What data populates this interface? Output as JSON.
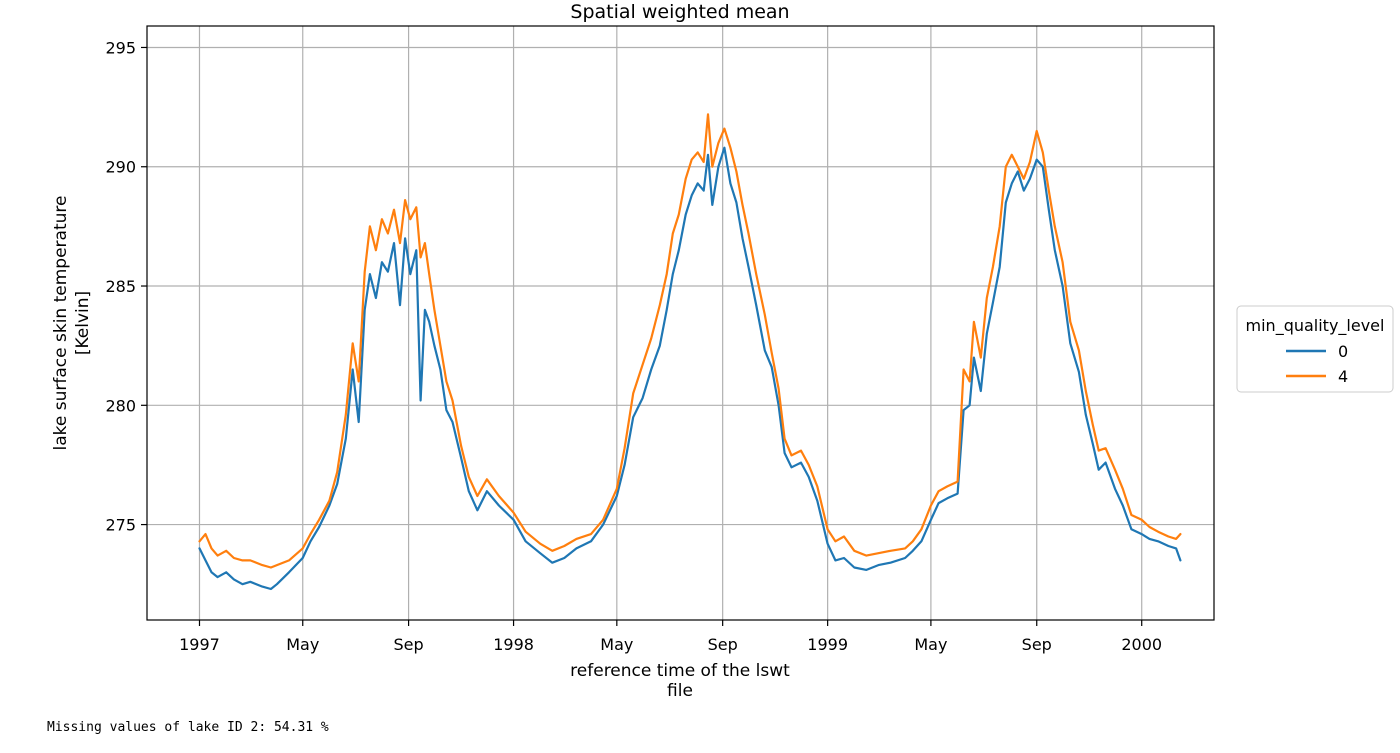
{
  "chart_data": {
    "type": "line",
    "title": "Spatial weighted mean",
    "xlabel_lines": [
      "reference time of the lswt",
      "file"
    ],
    "ylabel_lines": [
      "lake surface skin temperature",
      "[Kelvin]"
    ],
    "x_range": [
      "1996-11-01",
      "2000-03-25"
    ],
    "ylim": [
      271.0,
      295.9
    ],
    "y_ticks": [
      275,
      280,
      285,
      290,
      295
    ],
    "x_ticks": [
      {
        "date": "1997-01-01",
        "label": "1997"
      },
      {
        "date": "1997-05-01",
        "label": "May"
      },
      {
        "date": "1997-09-01",
        "label": "Sep"
      },
      {
        "date": "1998-01-01",
        "label": "1998"
      },
      {
        "date": "1998-05-01",
        "label": "May"
      },
      {
        "date": "1998-09-01",
        "label": "Sep"
      },
      {
        "date": "1999-01-01",
        "label": "1999"
      },
      {
        "date": "1999-05-01",
        "label": "May"
      },
      {
        "date": "1999-09-01",
        "label": "Sep"
      },
      {
        "date": "2000-01-01",
        "label": "2000"
      }
    ],
    "grid": true,
    "legend": {
      "title": "min_quality_level",
      "placement": "outside-right"
    },
    "series": [
      {
        "name": "0",
        "color": "#1f77b4",
        "points": [
          [
            "1997-01-01",
            274.0
          ],
          [
            "1997-01-08",
            273.5
          ],
          [
            "1997-01-15",
            273.0
          ],
          [
            "1997-01-22",
            272.8
          ],
          [
            "1997-02-01",
            273.0
          ],
          [
            "1997-02-10",
            272.7
          ],
          [
            "1997-02-20",
            272.5
          ],
          [
            "1997-03-01",
            272.6
          ],
          [
            "1997-03-15",
            272.4
          ],
          [
            "1997-03-25",
            272.3
          ],
          [
            "1997-04-01",
            272.5
          ],
          [
            "1997-04-15",
            273.0
          ],
          [
            "1997-05-01",
            273.6
          ],
          [
            "1997-05-10",
            274.3
          ],
          [
            "1997-05-20",
            274.9
          ],
          [
            "1997-06-01",
            275.8
          ],
          [
            "1997-06-10",
            276.7
          ],
          [
            "1997-06-20",
            278.6
          ],
          [
            "1997-06-28",
            281.5
          ],
          [
            "1997-07-05",
            279.3
          ],
          [
            "1997-07-12",
            284.0
          ],
          [
            "1997-07-18",
            285.5
          ],
          [
            "1997-07-25",
            284.5
          ],
          [
            "1997-08-01",
            286.0
          ],
          [
            "1997-08-08",
            285.6
          ],
          [
            "1997-08-15",
            286.8
          ],
          [
            "1997-08-22",
            284.2
          ],
          [
            "1997-08-28",
            287.0
          ],
          [
            "1997-09-03",
            285.5
          ],
          [
            "1997-09-10",
            286.5
          ],
          [
            "1997-09-15",
            280.2
          ],
          [
            "1997-09-20",
            284.0
          ],
          [
            "1997-09-25",
            283.5
          ],
          [
            "1997-10-01",
            282.5
          ],
          [
            "1997-10-08",
            281.5
          ],
          [
            "1997-10-15",
            279.8
          ],
          [
            "1997-10-22",
            279.3
          ],
          [
            "1997-11-01",
            277.8
          ],
          [
            "1997-11-10",
            276.4
          ],
          [
            "1997-11-20",
            275.6
          ],
          [
            "1997-12-01",
            276.4
          ],
          [
            "1997-12-15",
            275.8
          ],
          [
            "1998-01-01",
            275.2
          ],
          [
            "1998-01-15",
            274.3
          ],
          [
            "1998-02-01",
            273.8
          ],
          [
            "1998-02-15",
            273.4
          ],
          [
            "1998-03-01",
            273.6
          ],
          [
            "1998-03-15",
            274.0
          ],
          [
            "1998-04-01",
            274.3
          ],
          [
            "1998-04-15",
            275.0
          ],
          [
            "1998-05-01",
            276.2
          ],
          [
            "1998-05-10",
            277.5
          ],
          [
            "1998-05-20",
            279.5
          ],
          [
            "1998-05-31",
            280.3
          ],
          [
            "1998-06-10",
            281.5
          ],
          [
            "1998-06-20",
            282.5
          ],
          [
            "1998-06-28",
            284.0
          ],
          [
            "1998-07-05",
            285.5
          ],
          [
            "1998-07-12",
            286.5
          ],
          [
            "1998-07-20",
            288.0
          ],
          [
            "1998-07-27",
            288.8
          ],
          [
            "1998-08-03",
            289.3
          ],
          [
            "1998-08-10",
            289.0
          ],
          [
            "1998-08-15",
            290.5
          ],
          [
            "1998-08-20",
            288.4
          ],
          [
            "1998-08-27",
            290.0
          ],
          [
            "1998-09-03",
            290.8
          ],
          [
            "1998-09-10",
            289.3
          ],
          [
            "1998-09-17",
            288.5
          ],
          [
            "1998-09-24",
            287.0
          ],
          [
            "1998-10-01",
            285.8
          ],
          [
            "1998-10-10",
            284.2
          ],
          [
            "1998-10-20",
            282.3
          ],
          [
            "1998-10-28",
            281.6
          ],
          [
            "1998-11-05",
            280.0
          ],
          [
            "1998-11-12",
            278.0
          ],
          [
            "1998-11-20",
            277.4
          ],
          [
            "1998-12-01",
            277.6
          ],
          [
            "1998-12-10",
            277.0
          ],
          [
            "1998-12-20",
            276.0
          ],
          [
            "1999-01-01",
            274.2
          ],
          [
            "1999-01-10",
            273.5
          ],
          [
            "1999-01-20",
            273.6
          ],
          [
            "1999-02-01",
            273.2
          ],
          [
            "1999-02-15",
            273.1
          ],
          [
            "1999-03-01",
            273.3
          ],
          [
            "1999-03-15",
            273.4
          ],
          [
            "1999-04-01",
            273.6
          ],
          [
            "1999-04-10",
            273.9
          ],
          [
            "1999-04-20",
            274.3
          ],
          [
            "1999-05-01",
            275.2
          ],
          [
            "1999-05-10",
            275.9
          ],
          [
            "1999-05-20",
            276.1
          ],
          [
            "1999-06-01",
            276.3
          ],
          [
            "1999-06-08",
            279.8
          ],
          [
            "1999-06-15",
            280.0
          ],
          [
            "1999-06-20",
            282.0
          ],
          [
            "1999-06-28",
            280.6
          ],
          [
            "1999-07-05",
            283.0
          ],
          [
            "1999-07-12",
            284.3
          ],
          [
            "1999-07-20",
            285.8
          ],
          [
            "1999-07-27",
            288.5
          ],
          [
            "1999-08-03",
            289.3
          ],
          [
            "1999-08-10",
            289.8
          ],
          [
            "1999-08-17",
            289.0
          ],
          [
            "1999-08-24",
            289.5
          ],
          [
            "1999-09-01",
            290.3
          ],
          [
            "1999-09-08",
            290.0
          ],
          [
            "1999-09-15",
            288.2
          ],
          [
            "1999-09-22",
            286.5
          ],
          [
            "1999-10-01",
            285.0
          ],
          [
            "1999-10-10",
            282.6
          ],
          [
            "1999-10-20",
            281.4
          ],
          [
            "1999-10-28",
            279.6
          ],
          [
            "1999-11-05",
            278.4
          ],
          [
            "1999-11-12",
            277.3
          ],
          [
            "1999-11-20",
            277.6
          ],
          [
            "1999-12-01",
            276.5
          ],
          [
            "1999-12-10",
            275.8
          ],
          [
            "1999-12-20",
            274.8
          ],
          [
            "2000-01-01",
            274.6
          ],
          [
            "2000-01-10",
            274.4
          ],
          [
            "2000-01-20",
            274.3
          ],
          [
            "2000-02-01",
            274.1
          ],
          [
            "2000-02-10",
            274.0
          ],
          [
            "2000-02-15",
            273.5
          ]
        ]
      },
      {
        "name": "4",
        "color": "#ff7f0e",
        "points": [
          [
            "1997-01-01",
            274.3
          ],
          [
            "1997-01-08",
            274.6
          ],
          [
            "1997-01-15",
            274.0
          ],
          [
            "1997-01-22",
            273.7
          ],
          [
            "1997-02-01",
            273.9
          ],
          [
            "1997-02-10",
            273.6
          ],
          [
            "1997-02-20",
            273.5
          ],
          [
            "1997-03-01",
            273.5
          ],
          [
            "1997-03-15",
            273.3
          ],
          [
            "1997-03-25",
            273.2
          ],
          [
            "1997-04-01",
            273.3
          ],
          [
            "1997-04-15",
            273.5
          ],
          [
            "1997-05-01",
            274.0
          ],
          [
            "1997-05-10",
            274.6
          ],
          [
            "1997-05-20",
            275.2
          ],
          [
            "1997-06-01",
            276.0
          ],
          [
            "1997-06-10",
            277.2
          ],
          [
            "1997-06-20",
            279.6
          ],
          [
            "1997-06-28",
            282.6
          ],
          [
            "1997-07-05",
            281.0
          ],
          [
            "1997-07-12",
            285.6
          ],
          [
            "1997-07-18",
            287.5
          ],
          [
            "1997-07-25",
            286.5
          ],
          [
            "1997-08-01",
            287.8
          ],
          [
            "1997-08-08",
            287.2
          ],
          [
            "1997-08-15",
            288.2
          ],
          [
            "1997-08-22",
            286.8
          ],
          [
            "1997-08-28",
            288.6
          ],
          [
            "1997-09-03",
            287.8
          ],
          [
            "1997-09-10",
            288.3
          ],
          [
            "1997-09-15",
            286.2
          ],
          [
            "1997-09-20",
            286.8
          ],
          [
            "1997-09-25",
            285.5
          ],
          [
            "1997-10-01",
            284.0
          ],
          [
            "1997-10-08",
            282.5
          ],
          [
            "1997-10-15",
            281.0
          ],
          [
            "1997-10-22",
            280.2
          ],
          [
            "1997-11-01",
            278.3
          ],
          [
            "1997-11-10",
            277.0
          ],
          [
            "1997-11-20",
            276.2
          ],
          [
            "1997-12-01",
            276.9
          ],
          [
            "1997-12-15",
            276.2
          ],
          [
            "1998-01-01",
            275.5
          ],
          [
            "1998-01-15",
            274.7
          ],
          [
            "1998-02-01",
            274.2
          ],
          [
            "1998-02-15",
            273.9
          ],
          [
            "1998-03-01",
            274.1
          ],
          [
            "1998-03-15",
            274.4
          ],
          [
            "1998-04-01",
            274.6
          ],
          [
            "1998-04-15",
            275.2
          ],
          [
            "1998-05-01",
            276.5
          ],
          [
            "1998-05-10",
            278.2
          ],
          [
            "1998-05-20",
            280.5
          ],
          [
            "1998-05-31",
            281.7
          ],
          [
            "1998-06-10",
            282.8
          ],
          [
            "1998-06-20",
            284.2
          ],
          [
            "1998-06-28",
            285.5
          ],
          [
            "1998-07-05",
            287.2
          ],
          [
            "1998-07-12",
            288.0
          ],
          [
            "1998-07-20",
            289.5
          ],
          [
            "1998-07-27",
            290.3
          ],
          [
            "1998-08-03",
            290.6
          ],
          [
            "1998-08-10",
            290.2
          ],
          [
            "1998-08-15",
            292.2
          ],
          [
            "1998-08-20",
            290.0
          ],
          [
            "1998-08-27",
            291.0
          ],
          [
            "1998-09-03",
            291.6
          ],
          [
            "1998-09-10",
            290.8
          ],
          [
            "1998-09-17",
            289.8
          ],
          [
            "1998-09-24",
            288.4
          ],
          [
            "1998-10-01",
            287.2
          ],
          [
            "1998-10-10",
            285.5
          ],
          [
            "1998-10-20",
            283.8
          ],
          [
            "1998-10-28",
            282.2
          ],
          [
            "1998-11-05",
            280.7
          ],
          [
            "1998-11-12",
            278.6
          ],
          [
            "1998-11-20",
            277.9
          ],
          [
            "1998-12-01",
            278.1
          ],
          [
            "1998-12-10",
            277.5
          ],
          [
            "1998-12-20",
            276.6
          ],
          [
            "1999-01-01",
            274.8
          ],
          [
            "1999-01-10",
            274.3
          ],
          [
            "1999-01-20",
            274.5
          ],
          [
            "1999-02-01",
            273.9
          ],
          [
            "1999-02-15",
            273.7
          ],
          [
            "1999-03-01",
            273.8
          ],
          [
            "1999-03-15",
            273.9
          ],
          [
            "1999-04-01",
            274.0
          ],
          [
            "1999-04-10",
            274.3
          ],
          [
            "1999-04-20",
            274.8
          ],
          [
            "1999-05-01",
            275.8
          ],
          [
            "1999-05-10",
            276.4
          ],
          [
            "1999-05-20",
            276.6
          ],
          [
            "1999-06-01",
            276.8
          ],
          [
            "1999-06-08",
            281.5
          ],
          [
            "1999-06-15",
            281.0
          ],
          [
            "1999-06-20",
            283.5
          ],
          [
            "1999-06-28",
            282.0
          ],
          [
            "1999-07-05",
            284.5
          ],
          [
            "1999-07-12",
            285.8
          ],
          [
            "1999-07-20",
            287.5
          ],
          [
            "1999-07-27",
            290.0
          ],
          [
            "1999-08-03",
            290.5
          ],
          [
            "1999-08-10",
            290.0
          ],
          [
            "1999-08-17",
            289.5
          ],
          [
            "1999-08-24",
            290.2
          ],
          [
            "1999-09-01",
            291.5
          ],
          [
            "1999-09-08",
            290.6
          ],
          [
            "1999-09-15",
            289.0
          ],
          [
            "1999-09-22",
            287.5
          ],
          [
            "1999-10-01",
            286.0
          ],
          [
            "1999-10-10",
            283.5
          ],
          [
            "1999-10-20",
            282.3
          ],
          [
            "1999-10-28",
            280.6
          ],
          [
            "1999-11-05",
            279.2
          ],
          [
            "1999-11-12",
            278.1
          ],
          [
            "1999-11-20",
            278.2
          ],
          [
            "1999-12-01",
            277.3
          ],
          [
            "1999-12-10",
            276.5
          ],
          [
            "1999-12-20",
            275.4
          ],
          [
            "2000-01-01",
            275.2
          ],
          [
            "2000-01-10",
            274.9
          ],
          [
            "2000-01-20",
            274.7
          ],
          [
            "2000-02-01",
            274.5
          ],
          [
            "2000-02-10",
            274.4
          ],
          [
            "2000-02-15",
            274.6
          ]
        ]
      }
    ]
  },
  "output_text": "Missing values of lake ID 2: 54.31 %"
}
